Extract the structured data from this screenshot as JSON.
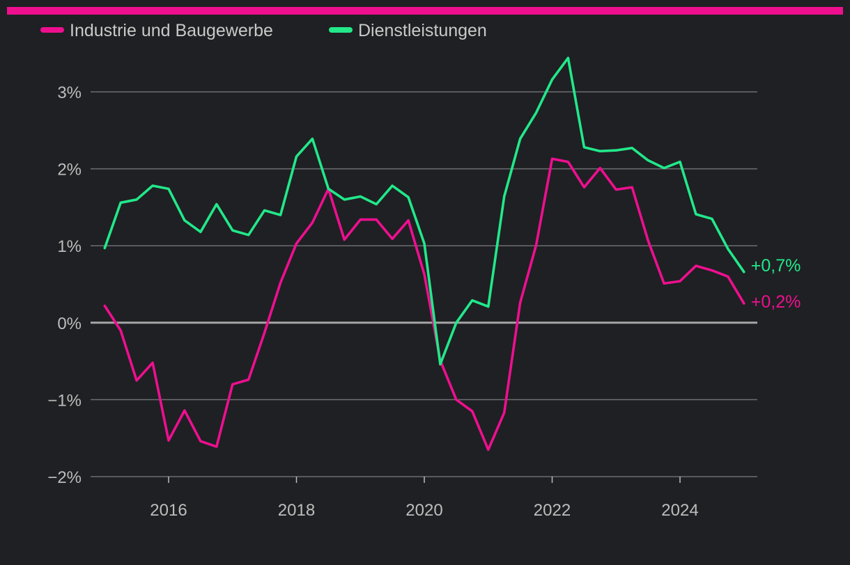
{
  "colors": {
    "background": "#1f2023",
    "accent": "#ee0f8f",
    "grid": "#6e6e72",
    "zero_line": "#a5a5a5",
    "tick_text": "#bdbdbd",
    "legend_text": "#c9c9c9"
  },
  "chart_data": {
    "type": "line",
    "title": "",
    "xlabel": "",
    "ylabel": "",
    "xlim": [
      2014.85,
      2025.2
    ],
    "ylim": [
      -2,
      3
    ],
    "grid": true,
    "legend": "top-left",
    "x_ticks": [
      2016,
      2018,
      2020,
      2022,
      2024
    ],
    "x_tick_labels": [
      "2016",
      "2018",
      "2020",
      "2022",
      "2024"
    ],
    "y_ticks": [
      3,
      2,
      1,
      0,
      -1,
      -2
    ],
    "y_tick_labels": [
      "3%",
      "2%",
      "1%",
      "0%",
      "−1%",
      "−2%"
    ],
    "x": [
      2015.0,
      2015.25,
      2015.5,
      2015.75,
      2016.0,
      2016.25,
      2016.5,
      2016.75,
      2017.0,
      2017.25,
      2017.5,
      2017.75,
      2018.0,
      2018.25,
      2018.5,
      2018.75,
      2019.0,
      2019.25,
      2019.5,
      2019.75,
      2020.0,
      2020.25,
      2020.5,
      2020.75,
      2021.0,
      2021.25,
      2021.5,
      2021.75,
      2022.0,
      2022.25,
      2022.5,
      2022.75,
      2023.0,
      2023.25,
      2023.5,
      2023.75,
      2024.0,
      2024.25,
      2024.5,
      2024.75,
      2025.0
    ],
    "series": [
      {
        "name": "Industrie und Baugewerbe",
        "color": "#ee0f8f",
        "end_label": "+0,2%",
        "values": [
          0.22,
          -0.1,
          -0.75,
          -0.52,
          -1.53,
          -1.14,
          -1.54,
          -1.61,
          -0.8,
          -0.74,
          -0.13,
          0.52,
          1.03,
          1.3,
          1.74,
          1.08,
          1.34,
          1.34,
          1.09,
          1.33,
          0.63,
          -0.49,
          -1.0,
          -1.15,
          -1.65,
          -1.17,
          0.26,
          1.01,
          2.13,
          2.09,
          1.76,
          2.01,
          1.73,
          1.76,
          1.07,
          0.51,
          0.54,
          0.74,
          0.68,
          0.6,
          0.25
        ]
      },
      {
        "name": "Dienstleistungen",
        "color": "#22e88a",
        "end_label": "+0,7%",
        "values": [
          0.97,
          1.56,
          1.6,
          1.78,
          1.74,
          1.33,
          1.18,
          1.54,
          1.2,
          1.14,
          1.46,
          1.4,
          2.16,
          2.39,
          1.74,
          1.6,
          1.64,
          1.54,
          1.78,
          1.63,
          1.03,
          -0.54,
          0.0,
          0.29,
          0.21,
          1.64,
          2.39,
          2.73,
          3.16,
          3.44,
          2.28,
          2.23,
          2.24,
          2.27,
          2.11,
          2.01,
          2.09,
          1.41,
          1.35,
          0.96,
          0.66
        ]
      }
    ]
  }
}
